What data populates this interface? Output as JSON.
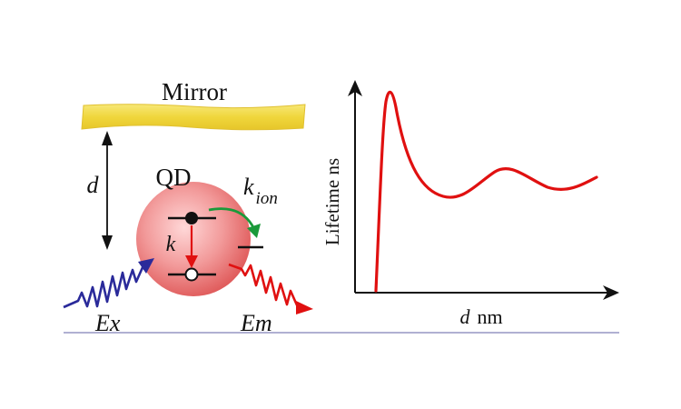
{
  "mirror": {
    "label": "Mirror",
    "color": "#f2dc4a"
  },
  "distance": {
    "label": "d"
  },
  "quantum_dot": {
    "label": "QD",
    "color": "#e85a5a"
  },
  "rates": {
    "radiative": "k",
    "ionization_base": "k",
    "ionization_sub": "ion"
  },
  "excitation": {
    "label": "Ex",
    "color": "#2a2a9a"
  },
  "emission": {
    "label": "Em",
    "color": "#e01010"
  },
  "ionization_arrow_color": "#1a9a3a",
  "chart": {
    "ylabel": "Lifetime ns",
    "xlabel_var": "d",
    "xlabel_unit": "nm",
    "curve_color": "#e01010"
  }
}
